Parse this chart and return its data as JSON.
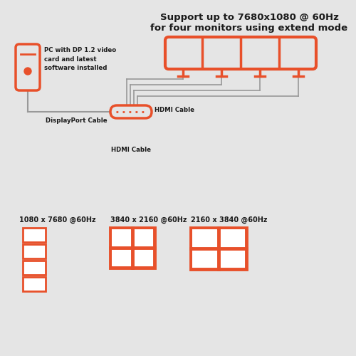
{
  "bg_color": "#e5e5e5",
  "orange": "#E8502A",
  "dark": "#1a1a1a",
  "gray": "#999999",
  "title_line1": "Support up to 7680x1080 @ 60Hz",
  "title_line2": "for four monitors using extend mode",
  "pc_label": "PC with DP 1.2 video\ncard and latest\nsoftware installed",
  "dp_label": "DisplayPort Cable",
  "hdmi_label1": "HDMI Cable",
  "hdmi_label2": "HDMI Cable",
  "res1_label": "1080 x 7680 @60Hz",
  "res2_label": "3840 x 2160 @60Hz",
  "res3_label": "2160 x 3840 @60Hz"
}
